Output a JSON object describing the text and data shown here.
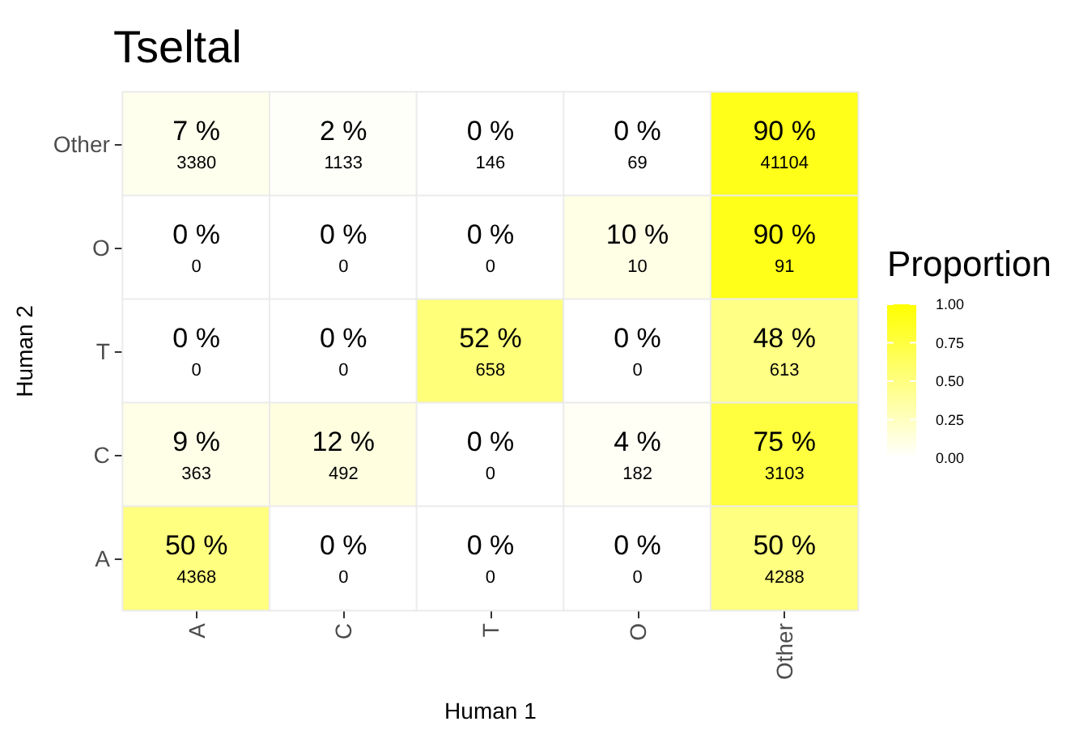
{
  "chart_data": {
    "type": "heatmap",
    "title": "Tseltal",
    "xlabel": "Human 1",
    "ylabel": "Human 2",
    "clabel": "Proportion",
    "categories": [
      "A",
      "C",
      "T",
      "O",
      "Other"
    ],
    "y_categories": [
      "Other",
      "O",
      "T",
      "C",
      "A"
    ],
    "cells": [
      [
        0.07,
        0.02,
        0,
        0,
        0.9
      ],
      [
        0,
        0,
        0,
        0.1,
        0.9
      ],
      [
        0,
        0,
        0.52,
        0,
        0.48
      ],
      [
        0.09,
        0.12,
        0,
        0.04,
        0.75
      ],
      [
        0.5,
        0,
        0,
        0,
        0.5
      ]
    ],
    "cell_labels": [
      [
        "7 %\n3380",
        "2 %\n1133",
        "0 %\n146",
        "0 %\n69",
        "90 %\n41104"
      ],
      [
        "0 %\n0",
        "0 %\n0",
        "0 %\n0",
        "10 %\n10",
        "90 %\n91"
      ],
      [
        "0 %\n0",
        "0 %\n0",
        "52 %\n658",
        "0 %\n0",
        "48 %\n613"
      ],
      [
        "9 %\n363",
        "12 %\n492",
        "0 %\n0",
        "4 %\n182",
        "75 %\n3103"
      ],
      [
        "50 %\n4368",
        "0 %\n0",
        "0 %\n0",
        "0 %\n0",
        "50 %\n4288"
      ]
    ],
    "clim": [
      0,
      1
    ],
    "cticks": [
      {
        "value": 0,
        "label": "0.00"
      },
      {
        "value": 0.25,
        "label": "0.25"
      },
      {
        "value": 0.5,
        "label": "0.50"
      },
      {
        "value": 0.75,
        "label": "0.75"
      },
      {
        "value": 1,
        "label": "1.00"
      }
    ]
  }
}
